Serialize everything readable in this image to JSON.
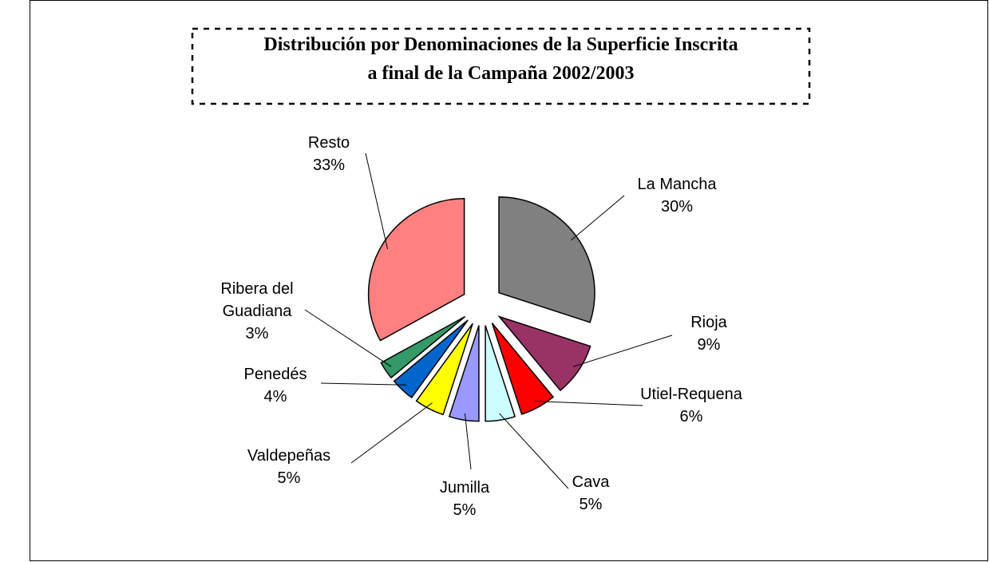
{
  "chart_data": {
    "type": "pie",
    "title": "Distribución por Denominaciones de la Superficie Inscrita\na final de la Campaña 2002/2003",
    "categories": [
      "La Mancha",
      "Rioja",
      "Utiel-Requena",
      "Cava",
      "Jumilla",
      "Valdepeñas",
      "Penedés",
      "Ribera del\nGuadiana",
      "Resto"
    ],
    "values": [
      30,
      9,
      6,
      5,
      5,
      5,
      4,
      3,
      33
    ],
    "value_labels": [
      "30%",
      "9%",
      "6%",
      "5%",
      "5%",
      "5%",
      "4%",
      "3%",
      "33%"
    ],
    "colors": [
      "#808080",
      "#993366",
      "#ff0000",
      "#ccffff",
      "#9999ff",
      "#ffff00",
      "#0066cc",
      "#339966",
      "#ff8080"
    ]
  }
}
